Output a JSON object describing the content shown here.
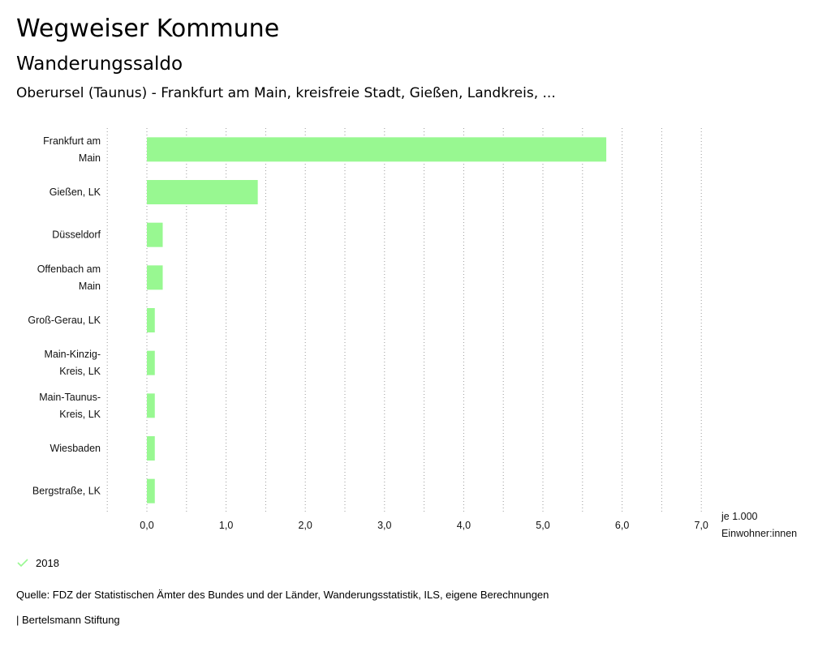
{
  "header": {
    "title": "Wegweiser Kommune",
    "subtitle": "Wanderungssaldo",
    "region": "Oberursel (Taunus) - Frankfurt am Main, kreisfreie Stadt, Gießen, Landkreis, ..."
  },
  "chart_data": {
    "type": "bar",
    "orientation": "horizontal",
    "categories": [
      [
        "Frankfurt am",
        "Main"
      ],
      [
        "Gießen, LK"
      ],
      [
        "Düsseldorf"
      ],
      [
        "Offenbach am",
        "Main"
      ],
      [
        "Groß-Gerau, LK"
      ],
      [
        "Main-Kinzig-",
        "Kreis, LK"
      ],
      [
        "Main-Taunus-",
        "Kreis, LK"
      ],
      [
        "Wiesbaden"
      ],
      [
        "Bergstraße, LK"
      ]
    ],
    "series": [
      {
        "name": "2018",
        "values": [
          5.8,
          1.4,
          0.2,
          0.2,
          0.1,
          0.1,
          0.1,
          0.1,
          0.1
        ]
      }
    ],
    "xlim": [
      -0.5,
      7.0
    ],
    "xticks": [
      "0,0",
      "1,0",
      "2,0",
      "3,0",
      "4,0",
      "5,0",
      "6,0",
      "7,0"
    ],
    "unit_label": [
      "je 1.000",
      "Einwohner:innen"
    ],
    "grid": "vertical dotted",
    "bar_color": "#98f891"
  },
  "legend": {
    "label": "2018",
    "color": "#98f891"
  },
  "footer": {
    "source": "Quelle: FDZ der Statistischen Ämter des Bundes und der Länder, Wanderungsstatistik, ILS, eigene Berechnungen",
    "brand": "| Bertelsmann Stiftung"
  }
}
